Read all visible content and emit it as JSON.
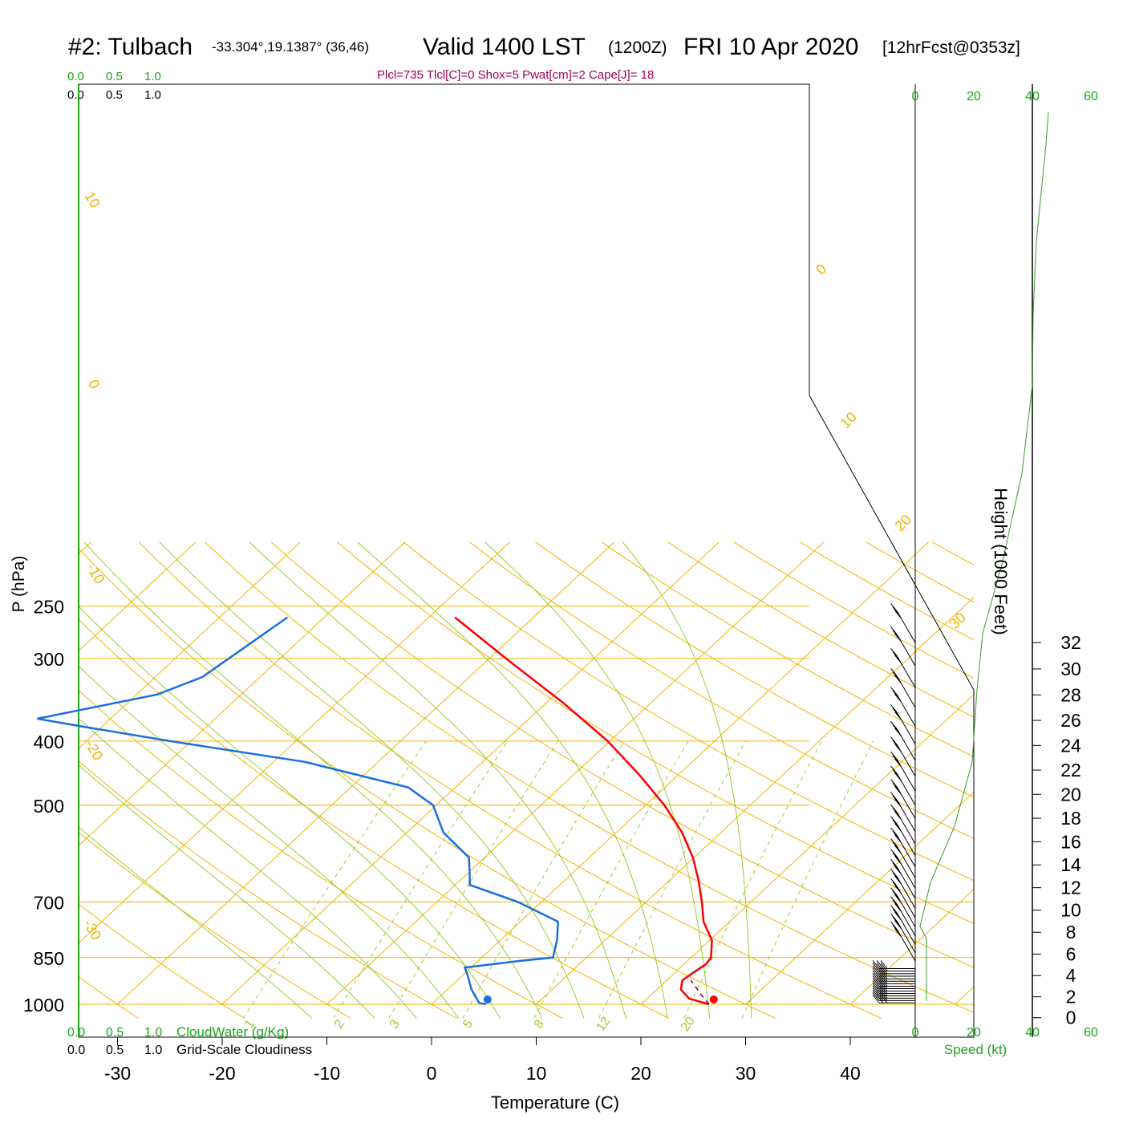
{
  "header": {
    "station": "#2: Tulbach",
    "coords": "-33.304°,19.1387° (36,46)",
    "valid": "Valid 1400 LST",
    "utc": "(1200Z)",
    "date": "FRI 10 Apr 2020",
    "fcst": "[12hrFcst@0353z]",
    "indices": "Plcl=735 Tlcl[C]=0 Shox=5 Pwat[cm]=2 Cape[J]= 18"
  },
  "colors": {
    "temperature": "#ff0000",
    "dewpoint": "#1a6fe0",
    "isotherm": "#f0b400",
    "dry_adiabat": "#f0b400",
    "moist_adiabat": "#9acd32",
    "mixing_ratio": "#9acd32",
    "green_axis": "#1aa51a",
    "parcel": "#800040",
    "header_indices": "#a0005a"
  },
  "top_left_scale": {
    "green": [
      "0.0",
      "0.5",
      "1.0"
    ],
    "black": [
      "0.0",
      "0.5",
      "1.0"
    ]
  },
  "bottom_left_scale": {
    "green": [
      "0.0",
      "0.5",
      "1.0"
    ],
    "green_label": "CloudWater (g/Kg)",
    "black": [
      "0.0",
      "0.5",
      "1.0"
    ],
    "black_label": "Grid-Scale Cloudiness"
  },
  "wind_axis": {
    "top_ticks": [
      "0",
      "20",
      "40",
      "60"
    ],
    "bottom_ticks": [
      "0",
      "20",
      "40",
      "60"
    ],
    "label": "Speed (kt)"
  },
  "chart_data": {
    "type": "skew-t",
    "xlabel": "Temperature (C)",
    "ylabel": "P (hPa)",
    "y2label": "Height (1000 Feet)",
    "x_ticks": [
      -30,
      -20,
      -10,
      0,
      10,
      20,
      30,
      40
    ],
    "pressure_ticks": [
      250,
      300,
      400,
      500,
      700,
      850,
      1000
    ],
    "pressure_range": [
      250,
      1000
    ],
    "log_pressure": true,
    "height_ticks": [
      0,
      2,
      4,
      6,
      8,
      10,
      12,
      14,
      16,
      18,
      20,
      22,
      24,
      26,
      28,
      30,
      32
    ],
    "mixing_ratio_labels": [
      "1",
      "2",
      "3",
      "5",
      "8",
      "12",
      "20"
    ],
    "mixing_ratio_values": [
      1,
      2,
      3,
      5,
      8,
      12,
      20
    ],
    "dry_adiabat_labels": [
      "10",
      "0",
      "-10",
      "-20",
      "-30",
      "0",
      "10",
      "20",
      "30"
    ],
    "temperature_profile": [
      {
        "p": 1000,
        "t": 26.5
      },
      {
        "p": 980,
        "t": 24.0
      },
      {
        "p": 950,
        "t": 22.3
      },
      {
        "p": 920,
        "t": 21.5
      },
      {
        "p": 900,
        "t": 21.7
      },
      {
        "p": 870,
        "t": 22.1
      },
      {
        "p": 850,
        "t": 21.9
      },
      {
        "p": 800,
        "t": 20.2
      },
      {
        "p": 750,
        "t": 17.5
      },
      {
        "p": 700,
        "t": 15.3
      },
      {
        "p": 650,
        "t": 12.8
      },
      {
        "p": 600,
        "t": 9.9
      },
      {
        "p": 550,
        "t": 6.3
      },
      {
        "p": 500,
        "t": 1.8
      },
      {
        "p": 450,
        "t": -3.7
      },
      {
        "p": 400,
        "t": -10.2
      },
      {
        "p": 350,
        "t": -18.4
      },
      {
        "p": 300,
        "t": -28.4
      },
      {
        "p": 260,
        "t": -37.5
      }
    ],
    "dewpoint_profile": [
      {
        "p": 1000,
        "t": 5.2
      },
      {
        "p": 995,
        "t": 4.4
      },
      {
        "p": 950,
        "t": 2.3
      },
      {
        "p": 900,
        "t": 0.3
      },
      {
        "p": 880,
        "t": -0.6
      },
      {
        "p": 860,
        "t": 3.9
      },
      {
        "p": 850,
        "t": 6.8
      },
      {
        "p": 800,
        "t": 5.4
      },
      {
        "p": 750,
        "t": 3.6
      },
      {
        "p": 700,
        "t": -2.3
      },
      {
        "p": 660,
        "t": -8.6
      },
      {
        "p": 630,
        "t": -10.0
      },
      {
        "p": 600,
        "t": -11.5
      },
      {
        "p": 550,
        "t": -16.5
      },
      {
        "p": 500,
        "t": -20.3
      },
      {
        "p": 470,
        "t": -24.5
      },
      {
        "p": 430,
        "t": -37.0
      },
      {
        "p": 400,
        "t": -52.0
      },
      {
        "p": 380,
        "t": -62.0
      },
      {
        "p": 370,
        "t": -67.0
      },
      {
        "p": 340,
        "t": -58.0
      },
      {
        "p": 320,
        "t": -55.5
      },
      {
        "p": 260,
        "t": -53.5
      }
    ],
    "surface_temperature": 26.5,
    "surface_dewpoint": 5.2,
    "parcel_path": [
      {
        "p": 1000,
        "t": 26.5
      },
      {
        "p": 960,
        "t": 24.4
      },
      {
        "p": 920,
        "t": 22.3
      }
    ]
  }
}
